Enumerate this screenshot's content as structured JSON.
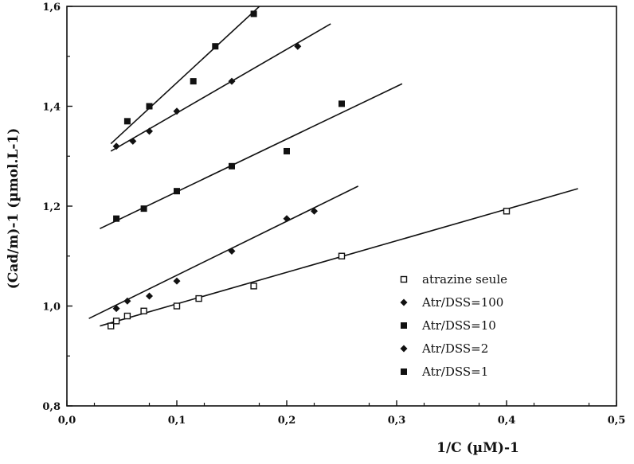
{
  "chart_data": {
    "type": "scatter",
    "title": "",
    "xlabel": "1/C  (µM)-1",
    "ylabel": "(Cad/m)-1  (µmol.L-1)",
    "xlim": [
      0.0,
      0.5
    ],
    "ylim": [
      0.8,
      1.6
    ],
    "x_ticks": [
      "0,0",
      "0,1",
      "0,2",
      "0,3",
      "0,4",
      "0,5"
    ],
    "y_ticks": [
      "0,8",
      "1,0",
      "1,2",
      "1,4",
      "1,6"
    ],
    "x_tick_values": [
      0.0,
      0.1,
      0.2,
      0.3,
      0.4,
      0.5
    ],
    "y_tick_values": [
      0.8,
      1.0,
      1.2,
      1.4,
      1.6
    ],
    "grid": false,
    "legend_position": "bottom-right",
    "series": [
      {
        "name": "atrazine seule",
        "marker": "open-square",
        "points": [
          [
            0.04,
            0.96
          ],
          [
            0.045,
            0.97
          ],
          [
            0.055,
            0.98
          ],
          [
            0.07,
            0.99
          ],
          [
            0.1,
            1.0
          ],
          [
            0.12,
            1.015
          ],
          [
            0.17,
            1.04
          ],
          [
            0.25,
            1.1
          ],
          [
            0.4,
            1.19
          ]
        ],
        "fit_line": [
          [
            0.03,
            0.96
          ],
          [
            0.465,
            1.235
          ]
        ]
      },
      {
        "name": "Atr/DSS=100",
        "marker": "diamond",
        "points": [
          [
            0.045,
            0.995
          ],
          [
            0.055,
            1.01
          ],
          [
            0.075,
            1.02
          ],
          [
            0.1,
            1.05
          ],
          [
            0.15,
            1.11
          ],
          [
            0.2,
            1.175
          ],
          [
            0.225,
            1.19
          ]
        ],
        "fit_line": [
          [
            0.02,
            0.975
          ],
          [
            0.265,
            1.24
          ]
        ]
      },
      {
        "name": "Atr/DSS=10",
        "marker": "filled-square",
        "points": [
          [
            0.045,
            1.175
          ],
          [
            0.07,
            1.195
          ],
          [
            0.1,
            1.23
          ],
          [
            0.15,
            1.28
          ],
          [
            0.2,
            1.31
          ],
          [
            0.25,
            1.405
          ]
        ],
        "fit_line": [
          [
            0.03,
            1.155
          ],
          [
            0.305,
            1.445
          ]
        ]
      },
      {
        "name": "Atr/DSS=2",
        "marker": "diamond",
        "points": [
          [
            0.045,
            1.32
          ],
          [
            0.06,
            1.33
          ],
          [
            0.075,
            1.35
          ],
          [
            0.1,
            1.39
          ],
          [
            0.15,
            1.45
          ],
          [
            0.21,
            1.52
          ]
        ],
        "fit_line": [
          [
            0.04,
            1.31
          ],
          [
            0.24,
            1.565
          ]
        ]
      },
      {
        "name": "Atr/DSS=1",
        "marker": "filled-square",
        "points": [
          [
            0.055,
            1.37
          ],
          [
            0.075,
            1.4
          ],
          [
            0.115,
            1.45
          ],
          [
            0.135,
            1.52
          ],
          [
            0.17,
            1.585
          ]
        ],
        "fit_line": [
          [
            0.04,
            1.325
          ],
          [
            0.185,
            1.62
          ]
        ]
      }
    ]
  }
}
